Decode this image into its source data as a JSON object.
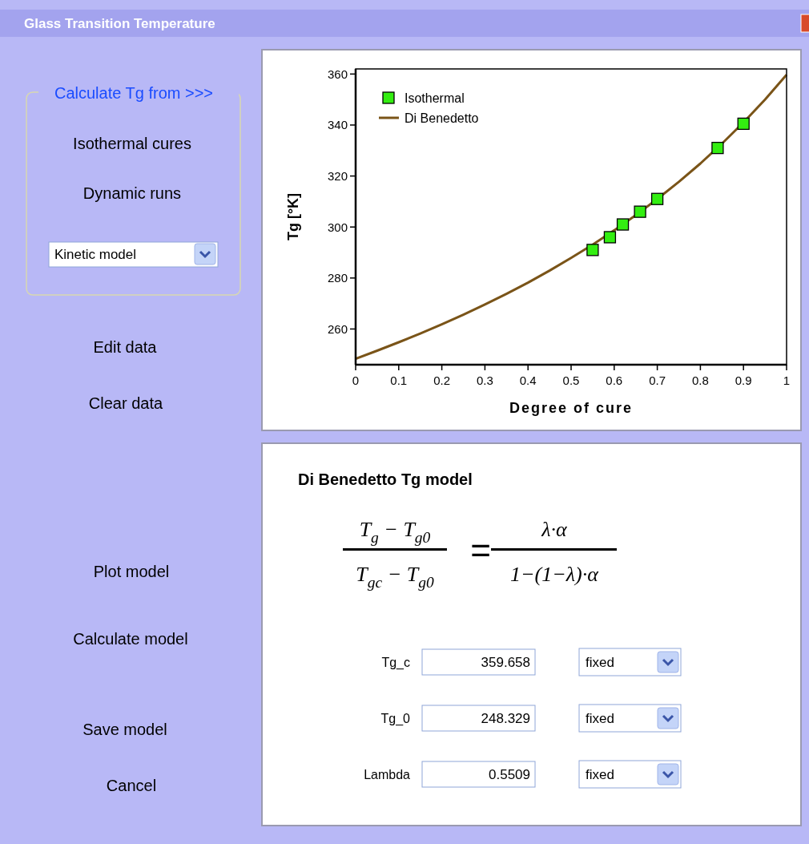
{
  "chart_data": [
    {
      "type": "other",
      "title": "Glass Transition Temperature",
      "annotations": [
        "Calculate Tg from >>>",
        "Isothermal cures",
        "Dynamic runs",
        "Kinetic model",
        "Edit data",
        "Clear data",
        "Plot model",
        "Calculate model",
        "Save model",
        "Cancel"
      ]
    },
    {
      "type": "scatter",
      "xlabel": "Degree of cure",
      "ylabel": "Tg  [°K]",
      "xlim": [
        0,
        1
      ],
      "ylim": [
        246,
        362
      ],
      "xticks": [
        0,
        0.1,
        0.2,
        0.3,
        0.4,
        0.5,
        0.6,
        0.7,
        0.8,
        0.9,
        1
      ],
      "yticks": [
        260,
        280,
        300,
        320,
        340,
        360
      ],
      "legend": "top left",
      "series": [
        {
          "name": "Isothermal",
          "type": "scatter",
          "marker": "square",
          "color": "#33ee11",
          "x": [
            0.55,
            0.59,
            0.62,
            0.66,
            0.7,
            0.84,
            0.9
          ],
          "values": [
            291,
            296,
            301,
            306,
            311,
            331,
            340.5
          ]
        },
        {
          "name": "Di Benedetto",
          "type": "line",
          "color": "#7a5418",
          "x": [
            0,
            0.05,
            0.1,
            0.15,
            0.2,
            0.25,
            0.3,
            0.35,
            0.4,
            0.45,
            0.5,
            0.55,
            0.6,
            0.65,
            0.7,
            0.75,
            0.8,
            0.85,
            0.9,
            0.95,
            1
          ],
          "values": [
            248.3,
            251.5,
            254.8,
            258.2,
            261.8,
            265.6,
            269.6,
            273.8,
            278.2,
            282.9,
            287.9,
            293.1,
            298.7,
            304.6,
            311,
            317.7,
            324.9,
            332.7,
            341,
            350,
            359.7
          ]
        }
      ]
    },
    {
      "type": "other",
      "title": "Di Benedetto Tg model",
      "annotations": [
        "T$_{g}$ − T$_{g0}$",
        "T$_{gc}$ − T$_{g0}$",
        "=",
        "λ·α",
        "1−(1−λ)·α",
        "Tg_c",
        "359.658",
        "fixed",
        "Tg_0",
        "248.329",
        "fixed",
        "Lambda",
        "0.5509",
        "fixed"
      ]
    }
  ]
}
